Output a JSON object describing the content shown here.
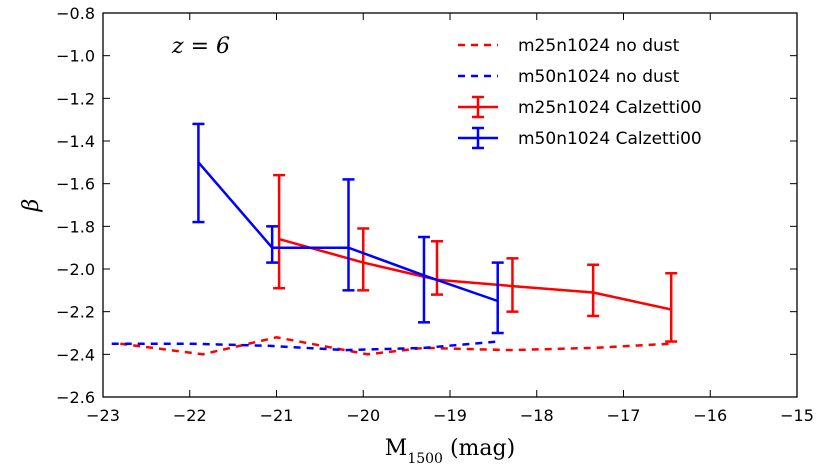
{
  "chart_data": {
    "type": "line",
    "title": "",
    "annotation": "z = 6",
    "xlabel": "M1500 (mag)",
    "xlabel_main": "M",
    "xlabel_sub": "1500",
    "xlabel_unit": " (mag)",
    "ylabel": "β",
    "xlim": [
      -23,
      -15
    ],
    "ylim": [
      -2.6,
      -0.8
    ],
    "xticks": [
      -23,
      -22,
      -21,
      -20,
      -19,
      -18,
      -17,
      -16,
      -15
    ],
    "yticks": [
      -2.6,
      -2.4,
      -2.2,
      -2.0,
      -1.8,
      -1.6,
      -1.4,
      -1.2,
      -1.0,
      -0.8
    ],
    "xtick_labels": [
      "−23",
      "−22",
      "−21",
      "−20",
      "−19",
      "−18",
      "−17",
      "−16",
      "−15"
    ],
    "ytick_labels": [
      "−2.6",
      "−2.4",
      "−2.2",
      "−2.0",
      "−1.8",
      "−1.6",
      "−1.4",
      "−1.2",
      "−1.0",
      "−0.8"
    ],
    "legend_position": "top-right",
    "series": [
      {
        "name": "m25n1024 no dust",
        "style": "dashed",
        "color": "#ff0000",
        "x": [
          -22.8,
          -21.85,
          -21.0,
          -19.95,
          -19.3,
          -18.3,
          -17.35,
          -16.45
        ],
        "y": [
          -2.35,
          -2.4,
          -2.32,
          -2.4,
          -2.37,
          -2.38,
          -2.37,
          -2.35
        ]
      },
      {
        "name": "m50n1024 no dust",
        "style": "dashed",
        "color": "#0000ff",
        "x": [
          -22.9,
          -22.0,
          -21.1,
          -20.2,
          -19.3,
          -18.45
        ],
        "y": [
          -2.35,
          -2.35,
          -2.36,
          -2.38,
          -2.37,
          -2.34
        ]
      },
      {
        "name": "m25n1024 Calzetti00",
        "style": "solid-errorbar",
        "color": "#ff0000",
        "x": [
          -20.97,
          -20.0,
          -19.15,
          -18.28,
          -17.35,
          -16.45
        ],
        "y": [
          -1.86,
          -1.97,
          -2.05,
          -2.08,
          -2.11,
          -2.19
        ],
        "yerr_low": [
          -2.09,
          -2.1,
          -2.12,
          -2.2,
          -2.22,
          -2.34
        ],
        "yerr_high": [
          -1.56,
          -1.81,
          -1.87,
          -1.95,
          -1.98,
          -2.02
        ]
      },
      {
        "name": "m50n1024 Calzetti00",
        "style": "solid-errorbar",
        "color": "#0000ff",
        "x": [
          -21.9,
          -21.05,
          -20.17,
          -19.3,
          -18.45
        ],
        "y": [
          -1.5,
          -1.9,
          -1.9,
          -2.03,
          -2.15
        ],
        "yerr_low": [
          -1.78,
          -1.97,
          -2.1,
          -2.25,
          -2.3
        ],
        "yerr_high": [
          -1.32,
          -1.8,
          -1.58,
          -1.85,
          -1.97
        ]
      }
    ]
  }
}
